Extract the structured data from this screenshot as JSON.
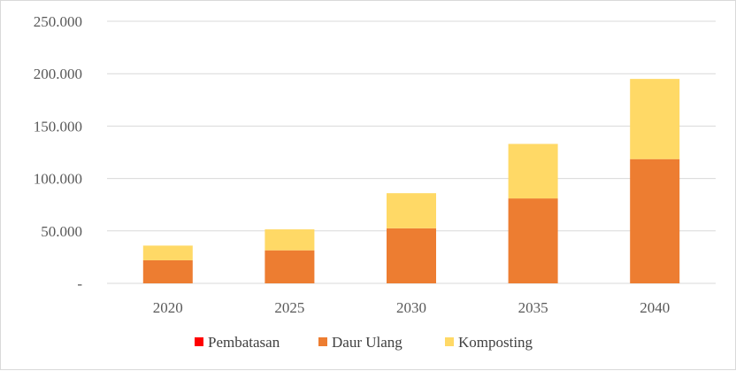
{
  "chart_data": {
    "type": "bar",
    "stacked": true,
    "categories": [
      "2020",
      "2025",
      "2030",
      "2035",
      "2040"
    ],
    "series": [
      {
        "name": "Pembatasan",
        "color": "#ff0000",
        "values": [
          0,
          0,
          0,
          0,
          0
        ]
      },
      {
        "name": "Daur Ulang",
        "color": "#ed7d31",
        "values": [
          22000,
          31500,
          52500,
          81000,
          118500
        ]
      },
      {
        "name": "Komposting",
        "color": "#ffd966",
        "values": [
          14000,
          20000,
          33500,
          52000,
          76500
        ]
      }
    ],
    "y_ticks": [
      "-",
      "50.000",
      "100.000",
      "150.000",
      "200.000",
      "250.000"
    ],
    "ylim": [
      0,
      250000
    ],
    "grid": true,
    "legend_position": "bottom"
  }
}
